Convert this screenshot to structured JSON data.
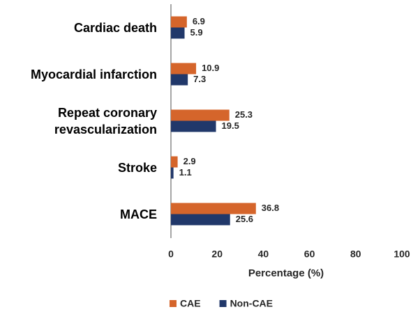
{
  "chart_data": {
    "type": "hbar",
    "categories": [
      "Cardiac death",
      "Myocardial infarction",
      "Repeat coronary revascularization",
      "Stroke",
      "MACE"
    ],
    "series": [
      {
        "name": "CAE",
        "color": "#d5652b",
        "values": [
          6.9,
          10.9,
          25.3,
          2.9,
          36.8
        ]
      },
      {
        "name": "Non-CAE",
        "color": "#21386a",
        "values": [
          5.9,
          7.3,
          19.5,
          1.1,
          25.6
        ]
      }
    ],
    "xlabel": "Percentage (%)",
    "xlim": [
      0,
      100
    ],
    "xticks": [
      0,
      20,
      40,
      60,
      80,
      100
    ],
    "grid": false,
    "legend": "bottom"
  }
}
